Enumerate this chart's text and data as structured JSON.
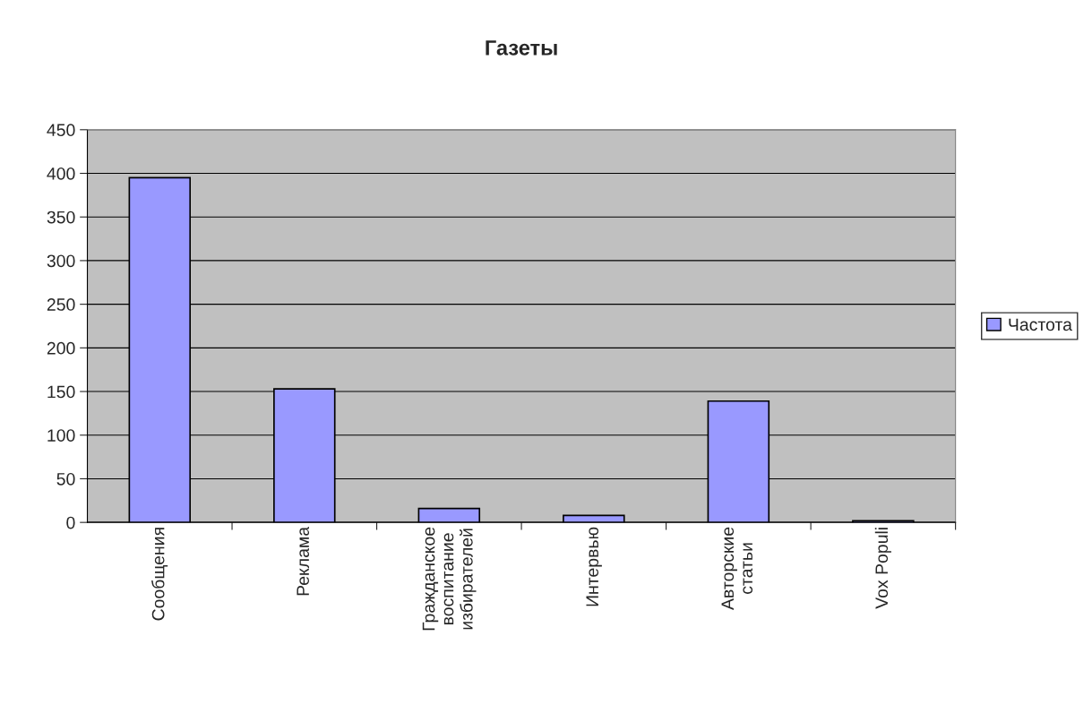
{
  "chart_data": {
    "type": "bar",
    "title": "Газеты",
    "categories": [
      "Сообщения",
      "Реклама",
      "Гражданское\nвоспитание\nизбирателей",
      "Интервью",
      "Авторские\nстатьи",
      "Vox Populi"
    ],
    "series": [
      {
        "name": "Частота",
        "color": "#9999ff",
        "values": [
          395,
          153,
          16,
          8,
          139,
          2
        ]
      }
    ],
    "ylim": [
      0,
      450
    ],
    "yticks": [
      0,
      50,
      100,
      150,
      200,
      250,
      300,
      350,
      400,
      450
    ],
    "grid": "y",
    "legend": "right"
  }
}
